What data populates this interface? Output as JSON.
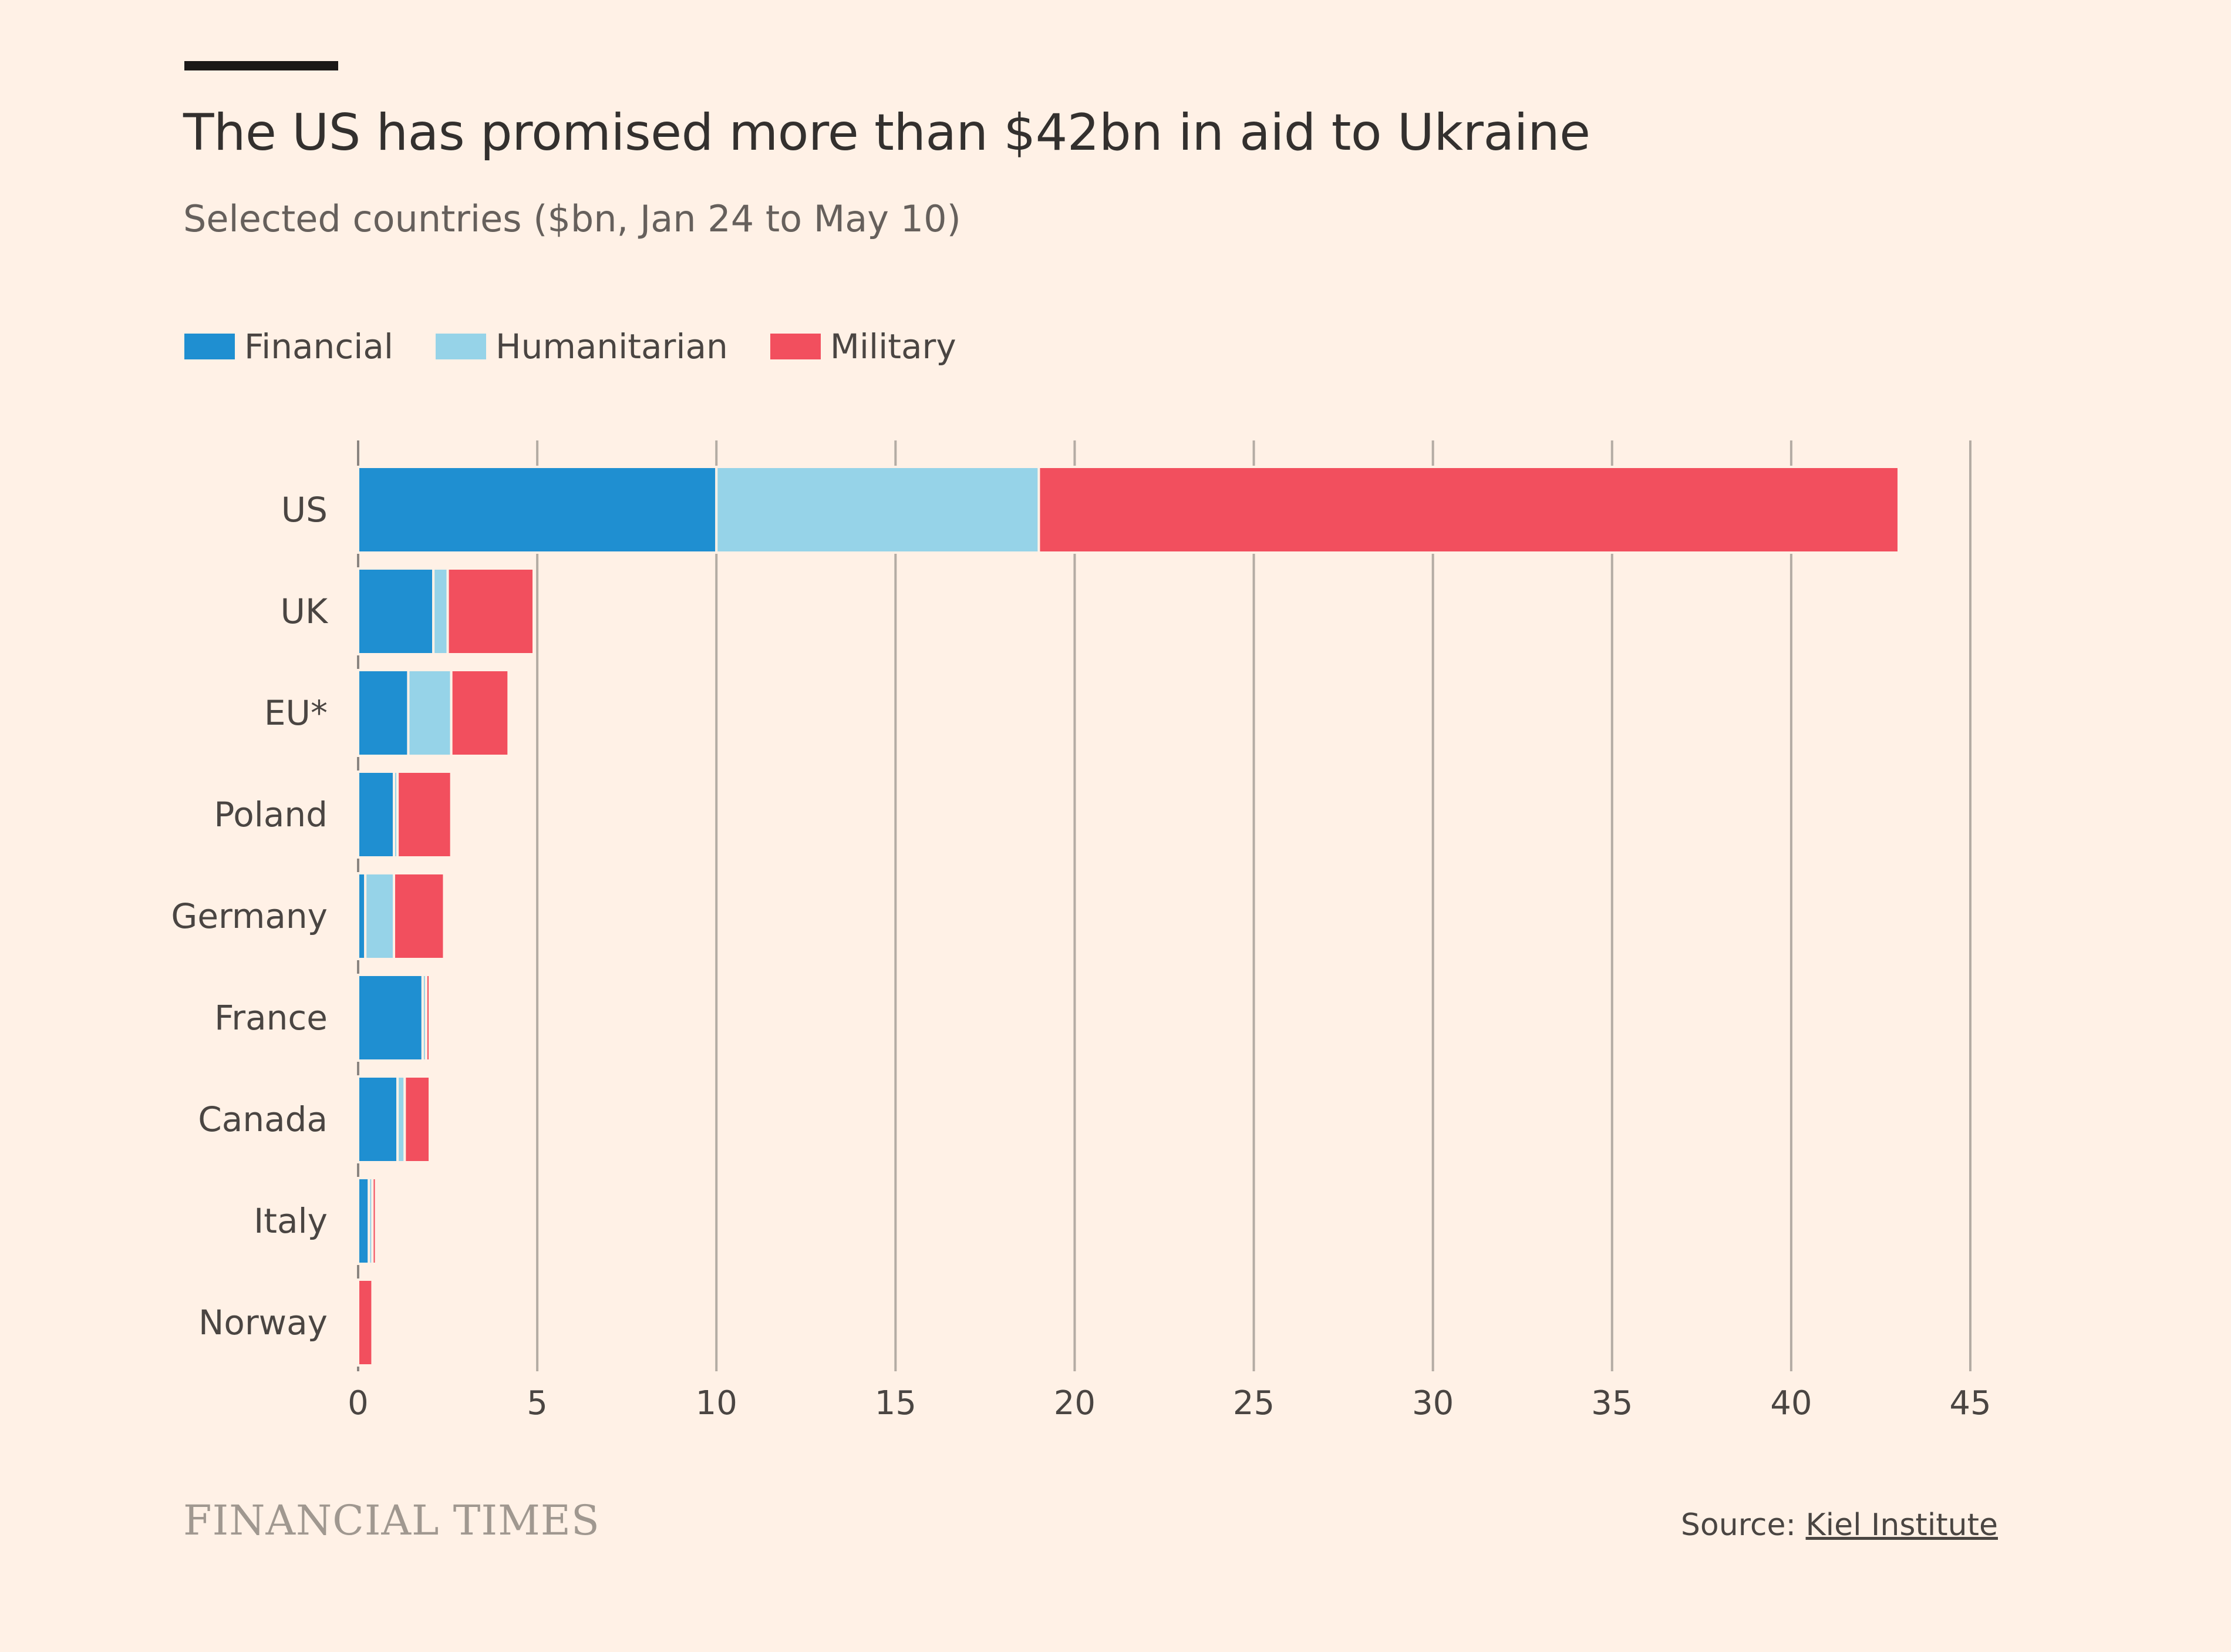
{
  "chart_data": {
    "type": "bar",
    "orientation": "horizontal",
    "stacked": true,
    "title": "The US has promised more than $42bn in aid to Ukraine",
    "subtitle": "Selected countries ($bn, Jan 24 to May 10)",
    "categories": [
      "US",
      "UK",
      "EU*",
      "Poland",
      "Germany",
      "France",
      "Canada",
      "Italy",
      "Norway"
    ],
    "series": [
      {
        "name": "Financial",
        "color": "#1f8fd1",
        "values": [
          10.0,
          2.1,
          1.4,
          1.0,
          0.2,
          1.8,
          1.1,
          0.3,
          0.0
        ]
      },
      {
        "name": "Humanitarian",
        "color": "#96d3e8",
        "values": [
          9.0,
          0.4,
          1.2,
          0.1,
          0.8,
          0.1,
          0.2,
          0.1,
          0.0
        ]
      },
      {
        "name": "Military",
        "color": "#f24f5e",
        "values": [
          24.0,
          2.4,
          1.6,
          1.5,
          1.4,
          0.1,
          0.7,
          0.1,
          0.4
        ]
      }
    ],
    "xlim": [
      0,
      45
    ],
    "xticks": [
      0,
      5,
      10,
      15,
      20,
      25,
      30,
      35,
      40,
      45
    ],
    "grid": true,
    "legend_position": "top-left"
  },
  "footer": {
    "brand": "FINANCIAL TIMES",
    "source_label": "Source:",
    "source_name": "Kiel Institute"
  }
}
